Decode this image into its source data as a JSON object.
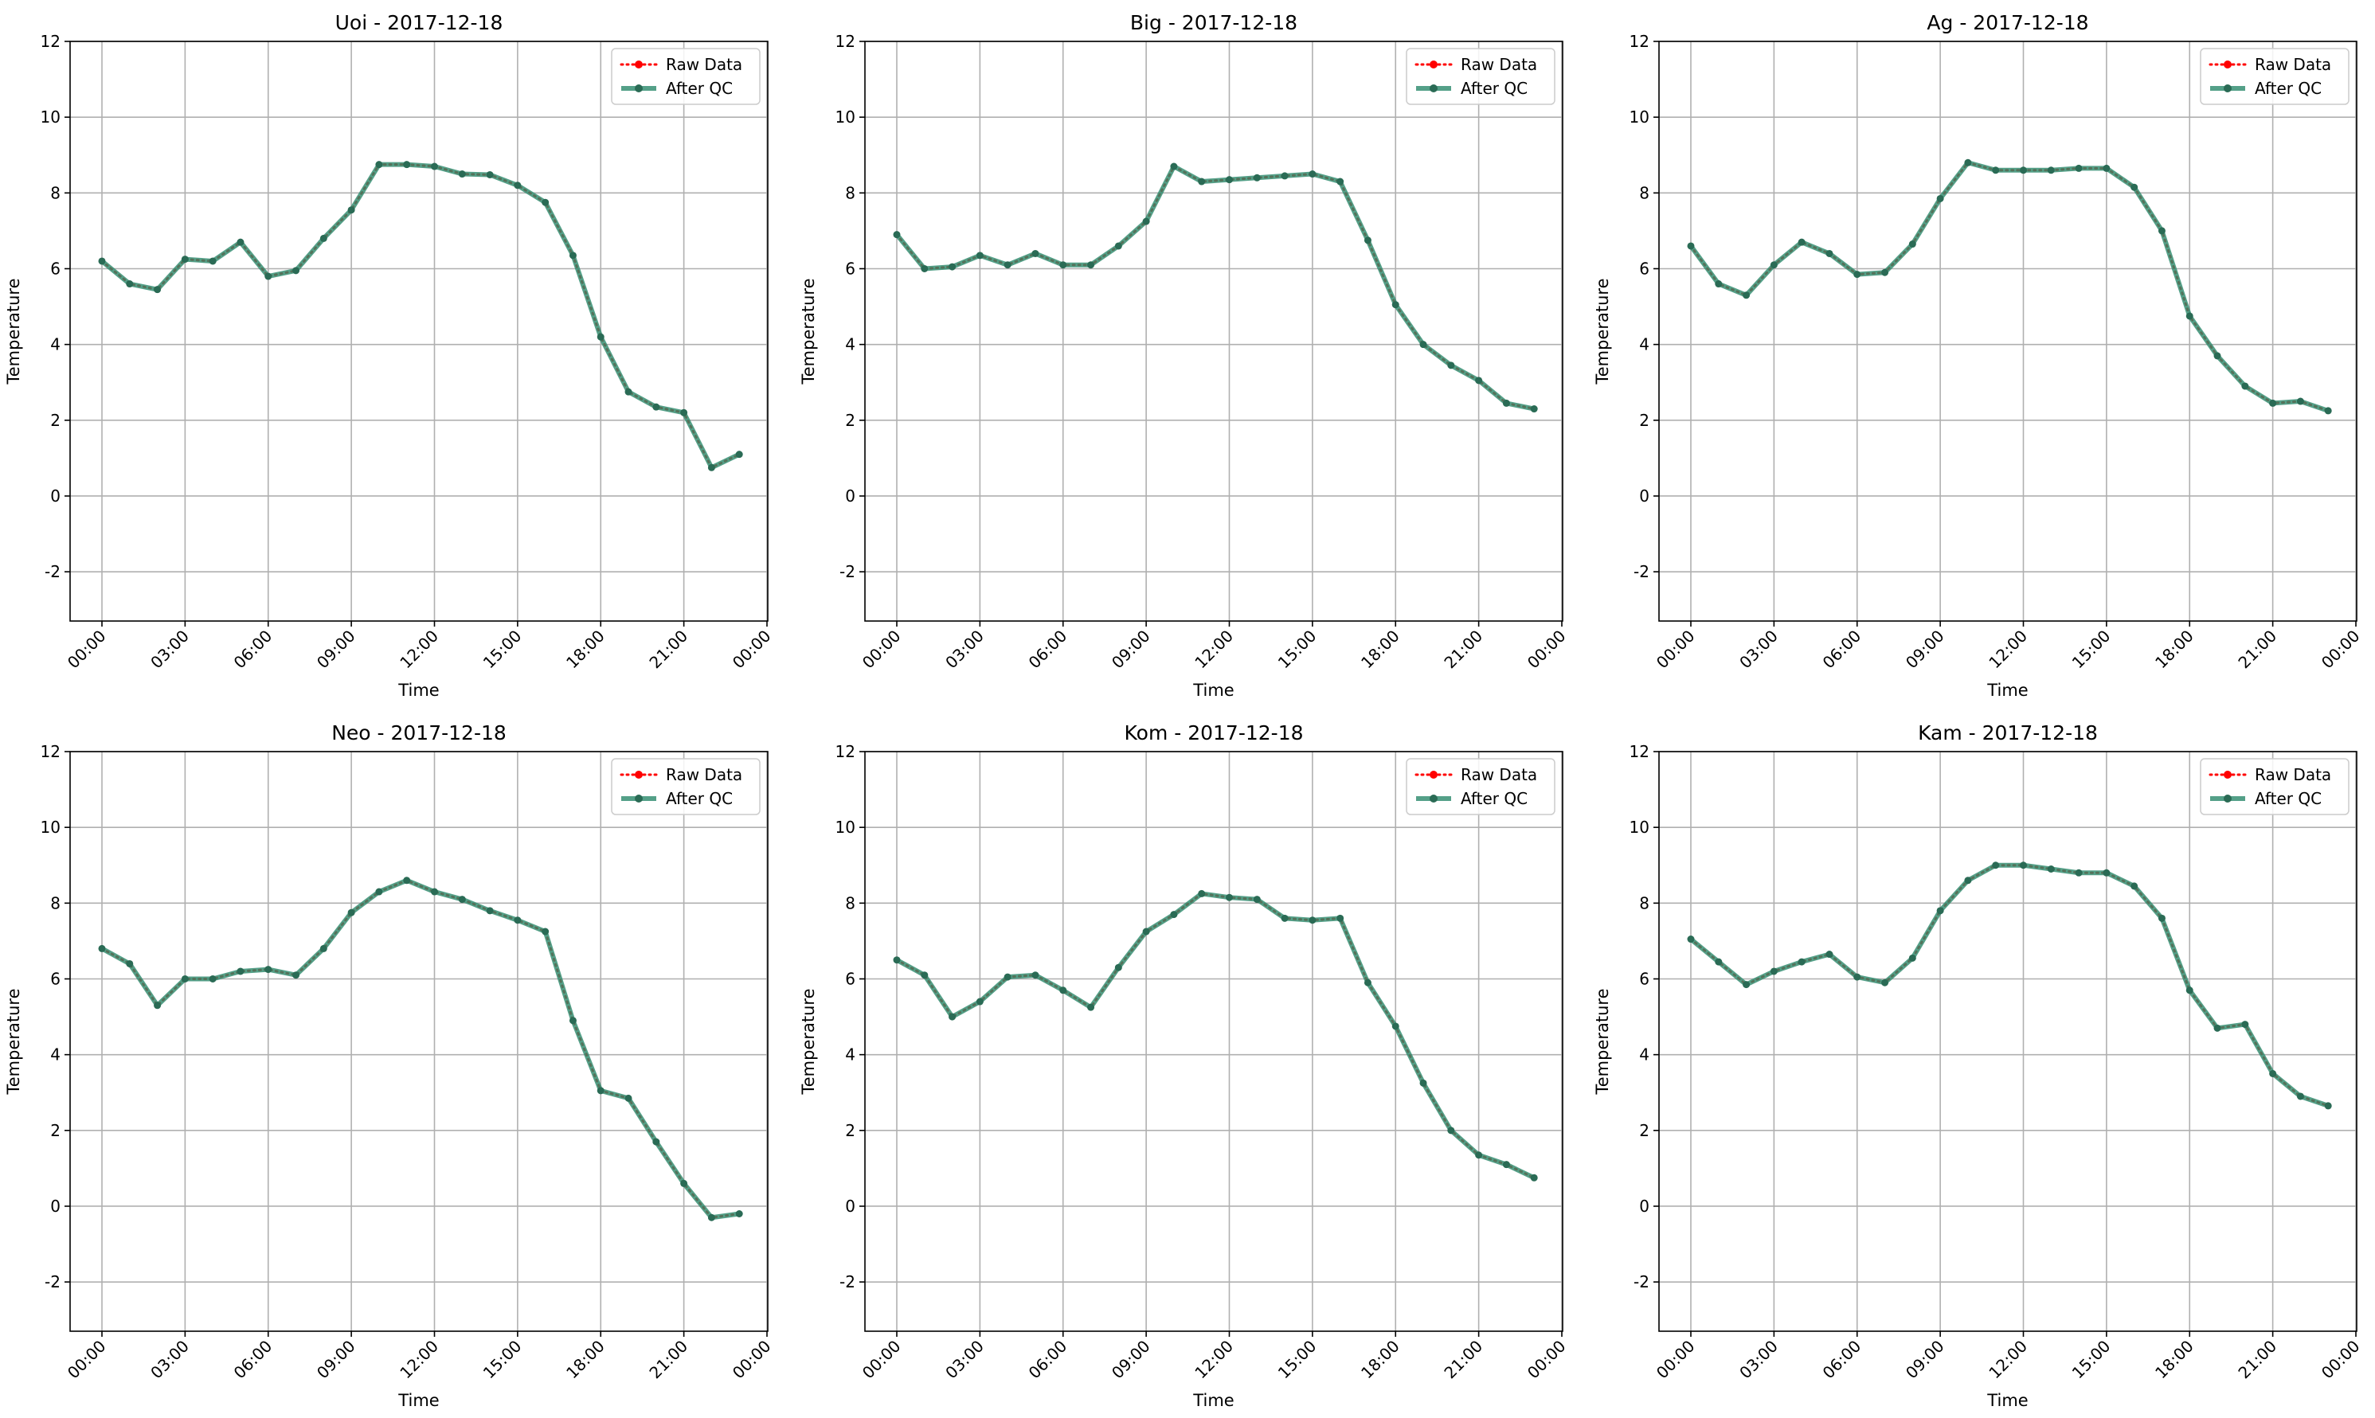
{
  "figure": {
    "background": "#ffffff"
  },
  "colors": {
    "raw": "#ff0000",
    "qc": "#2e8b6e",
    "qc_marker": "#2a6b55",
    "grid": "#b0b0b0"
  },
  "chart_data": [
    {
      "type": "line",
      "title": "Uoi - 2017-12-18",
      "xlabel": "Time",
      "ylabel": "Temperature",
      "ylim": [
        -3.3,
        12
      ],
      "yticks": [
        -2,
        0,
        2,
        4,
        6,
        8,
        10,
        12
      ],
      "xticks": [
        "00:00",
        "03:00",
        "06:00",
        "09:00",
        "12:00",
        "15:00",
        "18:00",
        "21:00",
        "00:00"
      ],
      "x_hours": [
        0,
        1,
        2,
        3,
        4,
        5,
        6,
        7,
        8,
        9,
        10,
        11,
        12,
        13,
        14,
        15,
        16,
        17,
        18,
        19,
        20,
        21,
        22,
        23
      ],
      "grid": true,
      "legend": "top-right",
      "series": [
        {
          "name": "Raw Data",
          "style": "dotted",
          "values": [
            6.2,
            5.6,
            5.45,
            6.25,
            6.2,
            6.7,
            5.8,
            5.95,
            6.8,
            7.55,
            8.75,
            8.75,
            8.7,
            8.5,
            8.48,
            8.2,
            7.75,
            6.35,
            4.2,
            2.75,
            2.35,
            2.2,
            0.75,
            1.1
          ]
        },
        {
          "name": "After QC",
          "style": "solid",
          "values": [
            6.2,
            5.6,
            5.45,
            6.25,
            6.2,
            6.7,
            5.8,
            5.95,
            6.8,
            7.55,
            8.75,
            8.75,
            8.7,
            8.5,
            8.48,
            8.2,
            7.75,
            6.35,
            4.2,
            2.75,
            2.35,
            2.2,
            0.75,
            1.1
          ]
        }
      ]
    },
    {
      "type": "line",
      "title": "Big - 2017-12-18",
      "xlabel": "Time",
      "ylabel": "Temperature",
      "ylim": [
        -3.3,
        12
      ],
      "yticks": [
        -2,
        0,
        2,
        4,
        6,
        8,
        10,
        12
      ],
      "xticks": [
        "00:00",
        "03:00",
        "06:00",
        "09:00",
        "12:00",
        "15:00",
        "18:00",
        "21:00",
        "00:00"
      ],
      "x_hours": [
        0,
        1,
        2,
        3,
        4,
        5,
        6,
        7,
        8,
        9,
        10,
        11,
        12,
        13,
        14,
        15,
        16,
        17,
        18,
        19,
        20,
        21,
        22,
        23
      ],
      "grid": true,
      "legend": "top-right",
      "series": [
        {
          "name": "Raw Data",
          "style": "dotted",
          "values": [
            6.9,
            6.0,
            6.05,
            6.35,
            6.1,
            6.4,
            6.1,
            6.1,
            6.6,
            7.25,
            8.7,
            8.3,
            8.35,
            8.4,
            8.45,
            8.5,
            8.3,
            6.75,
            5.05,
            4.0,
            3.45,
            3.05,
            2.45,
            2.3
          ]
        },
        {
          "name": "After QC",
          "style": "solid",
          "values": [
            6.9,
            6.0,
            6.05,
            6.35,
            6.1,
            6.4,
            6.1,
            6.1,
            6.6,
            7.25,
            8.7,
            8.3,
            8.35,
            8.4,
            8.45,
            8.5,
            8.3,
            6.75,
            5.05,
            4.0,
            3.45,
            3.05,
            2.45,
            2.3
          ]
        }
      ]
    },
    {
      "type": "line",
      "title": "Ag - 2017-12-18",
      "xlabel": "Time",
      "ylabel": "Temperature",
      "ylim": [
        -3.3,
        12
      ],
      "yticks": [
        -2,
        0,
        2,
        4,
        6,
        8,
        10,
        12
      ],
      "xticks": [
        "00:00",
        "03:00",
        "06:00",
        "09:00",
        "12:00",
        "15:00",
        "18:00",
        "21:00",
        "00:00"
      ],
      "x_hours": [
        0,
        1,
        2,
        3,
        4,
        5,
        6,
        7,
        8,
        9,
        10,
        11,
        12,
        13,
        14,
        15,
        16,
        17,
        18,
        19,
        20,
        21,
        22,
        23
      ],
      "grid": true,
      "legend": "top-right",
      "series": [
        {
          "name": "Raw Data",
          "style": "dotted",
          "values": [
            6.6,
            5.6,
            5.3,
            6.1,
            6.7,
            6.4,
            5.85,
            5.9,
            6.65,
            7.85,
            8.8,
            8.6,
            8.6,
            8.6,
            8.65,
            8.65,
            8.15,
            7.0,
            4.75,
            3.7,
            2.9,
            2.45,
            2.5,
            2.25
          ]
        },
        {
          "name": "After QC",
          "style": "solid",
          "values": [
            6.6,
            5.6,
            5.3,
            6.1,
            6.7,
            6.4,
            5.85,
            5.9,
            6.65,
            7.85,
            8.8,
            8.6,
            8.6,
            8.6,
            8.65,
            8.65,
            8.15,
            7.0,
            4.75,
            3.7,
            2.9,
            2.45,
            2.5,
            2.25
          ]
        }
      ]
    },
    {
      "type": "line",
      "title": "Neo - 2017-12-18",
      "xlabel": "Time",
      "ylabel": "Temperature",
      "ylim": [
        -3.3,
        12
      ],
      "yticks": [
        -2,
        0,
        2,
        4,
        6,
        8,
        10,
        12
      ],
      "xticks": [
        "00:00",
        "03:00",
        "06:00",
        "09:00",
        "12:00",
        "15:00",
        "18:00",
        "21:00",
        "00:00"
      ],
      "x_hours": [
        0,
        1,
        2,
        3,
        4,
        5,
        6,
        7,
        8,
        9,
        10,
        11,
        12,
        13,
        14,
        15,
        16,
        17,
        18,
        19,
        20,
        21,
        22,
        23
      ],
      "grid": true,
      "legend": "top-right",
      "series": [
        {
          "name": "Raw Data",
          "style": "dotted",
          "values": [
            6.8,
            6.4,
            5.3,
            6.0,
            6.0,
            6.2,
            6.25,
            6.1,
            6.8,
            7.75,
            8.3,
            8.6,
            8.3,
            8.1,
            7.8,
            7.55,
            7.25,
            4.9,
            3.05,
            2.85,
            1.7,
            0.6,
            -0.3,
            -0.2
          ]
        },
        {
          "name": "After QC",
          "style": "solid",
          "values": [
            6.8,
            6.4,
            5.3,
            6.0,
            6.0,
            6.2,
            6.25,
            6.1,
            6.8,
            7.75,
            8.3,
            8.6,
            8.3,
            8.1,
            7.8,
            7.55,
            7.25,
            4.9,
            3.05,
            2.85,
            1.7,
            0.6,
            -0.3,
            -0.2
          ]
        }
      ]
    },
    {
      "type": "line",
      "title": "Kom - 2017-12-18",
      "xlabel": "Time",
      "ylabel": "Temperature",
      "ylim": [
        -3.3,
        12
      ],
      "yticks": [
        -2,
        0,
        2,
        4,
        6,
        8,
        10,
        12
      ],
      "xticks": [
        "00:00",
        "03:00",
        "06:00",
        "09:00",
        "12:00",
        "15:00",
        "18:00",
        "21:00",
        "00:00"
      ],
      "x_hours": [
        0,
        1,
        2,
        3,
        4,
        5,
        6,
        7,
        8,
        9,
        10,
        11,
        12,
        13,
        14,
        15,
        16,
        17,
        18,
        19,
        20,
        21,
        22,
        23
      ],
      "grid": true,
      "legend": "top-right",
      "series": [
        {
          "name": "Raw Data",
          "style": "dotted",
          "values": [
            6.5,
            6.1,
            5.0,
            5.4,
            6.05,
            6.1,
            5.7,
            5.25,
            6.3,
            7.25,
            7.7,
            8.25,
            8.15,
            8.1,
            7.6,
            7.55,
            7.6,
            5.9,
            4.75,
            3.25,
            2.0,
            1.35,
            1.1,
            0.75
          ]
        },
        {
          "name": "After QC",
          "style": "solid",
          "values": [
            6.5,
            6.1,
            5.0,
            5.4,
            6.05,
            6.1,
            5.7,
            5.25,
            6.3,
            7.25,
            7.7,
            8.25,
            8.15,
            8.1,
            7.6,
            7.55,
            7.6,
            5.9,
            4.75,
            3.25,
            2.0,
            1.35,
            1.1,
            0.75
          ]
        }
      ]
    },
    {
      "type": "line",
      "title": "Kam - 2017-12-18",
      "xlabel": "Time",
      "ylabel": "Temperature",
      "ylim": [
        -3.3,
        12
      ],
      "yticks": [
        -2,
        0,
        2,
        4,
        6,
        8,
        10,
        12
      ],
      "xticks": [
        "00:00",
        "03:00",
        "06:00",
        "09:00",
        "12:00",
        "15:00",
        "18:00",
        "21:00",
        "00:00"
      ],
      "x_hours": [
        0,
        1,
        2,
        3,
        4,
        5,
        6,
        7,
        8,
        9,
        10,
        11,
        12,
        13,
        14,
        15,
        16,
        17,
        18,
        19,
        20,
        21,
        22,
        23
      ],
      "grid": true,
      "legend": "top-right",
      "series": [
        {
          "name": "Raw Data",
          "style": "dotted",
          "values": [
            7.05,
            6.45,
            5.85,
            6.2,
            6.45,
            6.65,
            6.05,
            5.9,
            6.55,
            7.8,
            8.6,
            9.0,
            9.0,
            8.9,
            8.8,
            8.8,
            8.45,
            7.6,
            5.7,
            4.7,
            4.8,
            3.5,
            2.9,
            2.65
          ]
        },
        {
          "name": "After QC",
          "style": "solid",
          "values": [
            7.05,
            6.45,
            5.85,
            6.2,
            6.45,
            6.65,
            6.05,
            5.9,
            6.55,
            7.8,
            8.6,
            9.0,
            9.0,
            8.9,
            8.8,
            8.8,
            8.45,
            7.6,
            5.7,
            4.7,
            4.8,
            3.5,
            2.9,
            2.65
          ]
        }
      ]
    }
  ]
}
